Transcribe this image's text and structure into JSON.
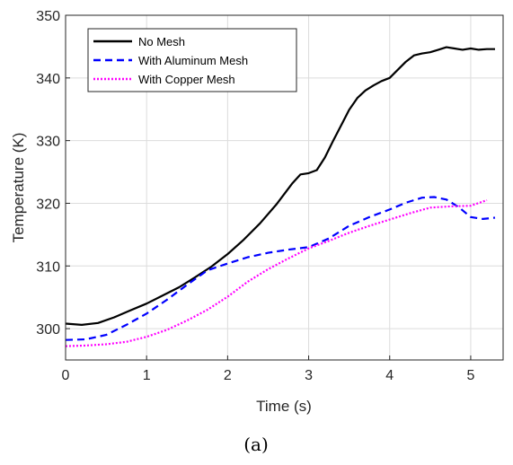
{
  "chart_data": {
    "type": "line",
    "xlabel": "Time (s)",
    "ylabel": "Temperature (K)",
    "xlim": [
      0,
      5.4
    ],
    "ylim": [
      295,
      350
    ],
    "xticks": [
      0,
      1,
      2,
      3,
      4,
      5
    ],
    "yticks": [
      300,
      310,
      320,
      330,
      340,
      350
    ],
    "grid": true,
    "legend_position": "top-left",
    "series": [
      {
        "name": "No Mesh",
        "color": "#000000",
        "style": "solid",
        "x": [
          0,
          0.2,
          0.4,
          0.6,
          0.8,
          1.0,
          1.2,
          1.4,
          1.6,
          1.8,
          2.0,
          2.2,
          2.4,
          2.6,
          2.8,
          2.9,
          3.0,
          3.1,
          3.2,
          3.3,
          3.4,
          3.5,
          3.6,
          3.7,
          3.8,
          3.9,
          4.0,
          4.1,
          4.2,
          4.3,
          4.4,
          4.5,
          4.6,
          4.7,
          4.8,
          4.9,
          5.0,
          5.1,
          5.2,
          5.3
        ],
        "y": [
          300.8,
          300.6,
          300.9,
          301.8,
          302.9,
          304.0,
          305.3,
          306.6,
          308.2,
          309.9,
          311.9,
          314.2,
          316.8,
          319.8,
          323.2,
          324.6,
          324.8,
          325.3,
          327.3,
          329.9,
          332.4,
          334.9,
          336.8,
          338.0,
          338.8,
          339.5,
          340.0,
          341.3,
          342.6,
          343.6,
          343.9,
          344.1,
          344.5,
          344.9,
          344.7,
          344.5,
          344.7,
          344.5,
          344.6,
          344.6
        ]
      },
      {
        "name": "With Aluminum Mesh",
        "color": "#0000ff",
        "style": "dashed",
        "x": [
          0,
          0.25,
          0.5,
          0.75,
          1.0,
          1.25,
          1.5,
          1.75,
          2.0,
          2.25,
          2.5,
          2.75,
          3.0,
          3.25,
          3.5,
          3.75,
          4.0,
          4.2,
          4.4,
          4.55,
          4.7,
          4.85,
          5.0,
          5.15,
          5.3
        ],
        "y": [
          298.2,
          298.3,
          299.0,
          300.6,
          302.4,
          304.6,
          307.0,
          309.3,
          310.4,
          311.4,
          312.1,
          312.6,
          313.0,
          314.4,
          316.4,
          317.8,
          319.0,
          320.1,
          320.9,
          321.0,
          320.6,
          319.4,
          317.8,
          317.5,
          317.7
        ]
      },
      {
        "name": "With Copper Mesh",
        "color": "#ff00ff",
        "style": "dotted",
        "x": [
          0,
          0.25,
          0.5,
          0.75,
          1.0,
          1.25,
          1.5,
          1.75,
          2.0,
          2.25,
          2.5,
          2.75,
          3.0,
          3.25,
          3.5,
          3.75,
          4.0,
          4.25,
          4.5,
          4.75,
          5.0,
          5.2
        ],
        "y": [
          297.2,
          297.3,
          297.5,
          297.9,
          298.7,
          299.8,
          301.3,
          303.0,
          305.1,
          307.5,
          309.5,
          311.2,
          312.8,
          314.0,
          315.3,
          316.4,
          317.4,
          318.4,
          319.3,
          319.5,
          319.6,
          320.5
        ]
      }
    ]
  },
  "caption": "(a)"
}
